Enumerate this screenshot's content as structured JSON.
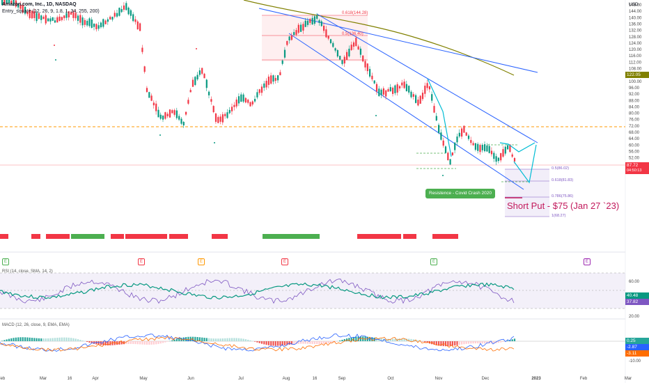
{
  "header": {
    "symbol_line": "Amazon.com, Inc., 1D, NASDAQ",
    "indicator_line": "Entry_square (12, 26, 9, 1.8, 1, 34, 255, 200)"
  },
  "price_axis": {
    "currency": "USD",
    "min": 48,
    "max": 148,
    "ticks": [
      "148.00",
      "144.00",
      "140.00",
      "136.00",
      "132.00",
      "128.00",
      "124.00",
      "120.00",
      "116.00",
      "112.00",
      "108.00",
      "104.00",
      "100.00",
      "96.00",
      "92.00",
      "88.00",
      "84.00",
      "80.00",
      "76.00",
      "72.00",
      "68.00",
      "64.00",
      "60.00",
      "56.00",
      "52.00"
    ],
    "tags": [
      {
        "label": "122.05",
        "value": 122.05,
        "color": "#808000"
      },
      {
        "label": "87.72",
        "value": 87.72,
        "color": "#f23645"
      },
      {
        "label": "04:50:13",
        "value": 86.4,
        "color": "#f23645"
      }
    ]
  },
  "time_axis": {
    "labels": [
      "Feb",
      "Mar",
      "16",
      "Apr",
      "May",
      "Jun",
      "Jul",
      "Aug",
      "16",
      "Sep",
      "Oct",
      "Nov",
      "Dec",
      "2023",
      "Feb",
      "Mar"
    ]
  },
  "fib_levels": [
    {
      "label": "0.618(144.28)",
      "value": 144.28
    },
    {
      "label": "0.5(136.40)",
      "value": 136.4
    },
    {
      "label": "0.5(86.02)",
      "value": 86.02
    },
    {
      "label": "0.618(81.83)",
      "value": 81.83
    },
    {
      "label": "0.786(75.86)",
      "value": 75.86
    },
    {
      "label": "1(68.27)",
      "value": 68.27
    }
  ],
  "annotations": {
    "resistance_label": "Resistence - Covid Crash 2020",
    "trade_label": "Short Put - $75 (Jan 27 `23)"
  },
  "earnings_markers": [
    "E",
    "E",
    "E",
    "E",
    "E",
    "E",
    "E"
  ],
  "rsi": {
    "label": "RSI (14, close, SMA, 14, 2)",
    "ticks": [
      "60.00",
      "40.00",
      "20.00"
    ],
    "tags": [
      {
        "label": "40.48",
        "color": "#089981"
      },
      {
        "label": "37.82",
        "color": "#7e57c2"
      }
    ]
  },
  "macd": {
    "label": "MACD (12, 26, close, 9, EMA, EMA)",
    "ticks": [
      "0.25",
      "-10.00"
    ],
    "tags": [
      {
        "label": "0.25",
        "color": "#26a69a"
      },
      {
        "label": "-2.87",
        "color": "#2962ff"
      },
      {
        "label": "-3.11",
        "color": "#ff6d00"
      }
    ]
  },
  "colors": {
    "up": "#089981",
    "down": "#f23645",
    "bull_bar": "#4caf50",
    "bear_bar": "#f23645",
    "channel": "#2962ff",
    "ma200": "#808000",
    "resistance": "#ff9800",
    "fib": "#9c27b0"
  },
  "chart_data": {
    "type": "candlestick",
    "series_ranges": {
      "price_ylim": [
        48,
        148
      ],
      "rsi_ylim": [
        20,
        70
      ]
    },
    "approx_closes": [
      {
        "month": "Feb",
        "close": 155
      },
      {
        "month": "Mar",
        "close": 150
      },
      {
        "month": "Apr",
        "close": 145
      },
      {
        "month": "May",
        "close": 110
      },
      {
        "month": "Jun",
        "close": 108
      },
      {
        "month": "Jul",
        "close": 118
      },
      {
        "month": "Aug",
        "close": 140
      },
      {
        "month": "Sep",
        "close": 128
      },
      {
        "month": "Oct",
        "close": 113
      },
      {
        "month": "Nov",
        "close": 90
      },
      {
        "month": "Dec",
        "close": 88
      }
    ],
    "resistance_level": 102.5,
    "last_price": 87.72
  }
}
